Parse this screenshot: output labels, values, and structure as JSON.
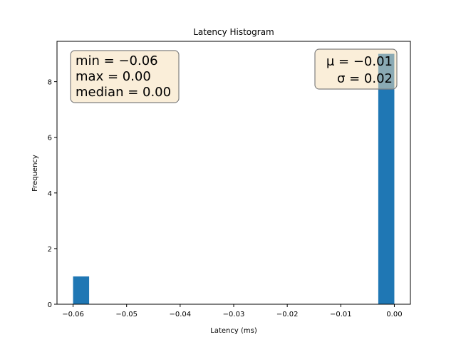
{
  "chart_data": {
    "type": "bar",
    "title": "Latency Histogram",
    "xlabel": "Latency (ms)",
    "ylabel": "Frequency",
    "xlim": [
      -0.063,
      0.003
    ],
    "ylim": [
      0,
      9.45
    ],
    "xticks": [
      -0.06,
      -0.05,
      -0.04,
      -0.03,
      -0.02,
      -0.01,
      0.0
    ],
    "xtick_labels": [
      "−0.06",
      "−0.05",
      "−0.04",
      "−0.03",
      "−0.02",
      "−0.01",
      "0.00"
    ],
    "yticks": [
      0,
      2,
      4,
      6,
      8
    ],
    "ytick_labels": [
      "0",
      "2",
      "4",
      "6",
      "8"
    ],
    "bins": [
      {
        "x0": -0.06,
        "x1": -0.057,
        "count": 1
      },
      {
        "x0": -0.003,
        "x1": 0.0,
        "count": 9
      }
    ],
    "bar_color": "#1f77b4",
    "grid": false,
    "annotations": {
      "left_box": [
        "min = −0.06",
        "max = 0.00",
        "median = 0.00"
      ],
      "right_box": [
        "μ = −0.01",
        "σ = 0.02"
      ],
      "box_fill": "#f5deb3",
      "box_alpha": 0.5
    }
  }
}
